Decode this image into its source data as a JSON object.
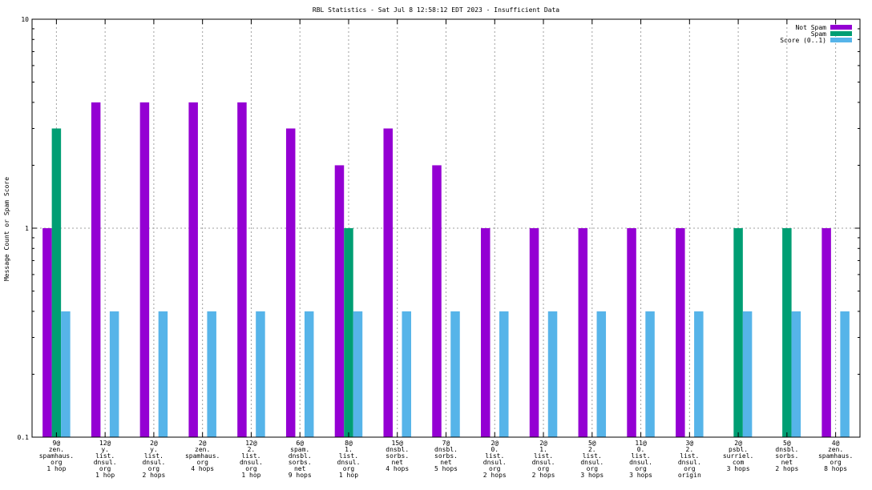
{
  "chart_data": {
    "type": "bar",
    "title": "RBL Statistics - Sat Jul  8 12:58:12 EDT 2023 - Insufficient Data",
    "ylabel": "Message Count or Spam Score",
    "xlabel": "",
    "yscale": "log",
    "ylim": [
      0.1,
      10
    ],
    "y_ticks": [
      "0.1",
      "1",
      "10"
    ],
    "legend_position": "top-right",
    "grid": "dotted",
    "categories": [
      [
        "9@",
        "zen.",
        "spamhaus.",
        "org",
        "1 hop"
      ],
      [
        "12@",
        "y.",
        "list.",
        "dnsul.",
        "org",
        "1 hop"
      ],
      [
        "2@",
        "y.",
        "list.",
        "dnsul.",
        "org",
        "2 hops"
      ],
      [
        "2@",
        "zen.",
        "spamhaus.",
        "org",
        "4 hops"
      ],
      [
        "12@",
        "2.",
        "list.",
        "dnsul.",
        "org",
        "1 hop"
      ],
      [
        "6@",
        "spam.",
        "dnsbl.",
        "sorbs.",
        "net",
        "9 hops"
      ],
      [
        "8@",
        "1.",
        "list.",
        "dnsul.",
        "org",
        "1 hop"
      ],
      [
        "15@",
        "dnsbl.",
        "sorbs.",
        "net",
        "4 hops"
      ],
      [
        "7@",
        "dnsbl.",
        "sorbs.",
        "net",
        "5 hops"
      ],
      [
        "2@",
        "0.",
        "list.",
        "dnsul.",
        "org",
        "2 hops"
      ],
      [
        "2@",
        "1.",
        "list.",
        "dnsul.",
        "org",
        "2 hops"
      ],
      [
        "5@",
        "2.",
        "list.",
        "dnsul.",
        "org",
        "3 hops"
      ],
      [
        "11@",
        "0.",
        "list.",
        "dnsul.",
        "org",
        "3 hops"
      ],
      [
        "3@",
        "2.",
        "list.",
        "dnsul.",
        "org",
        "origin"
      ],
      [
        "2@",
        "psbl.",
        "surriel.",
        "com",
        "3 hops"
      ],
      [
        "5@",
        "dnsbl.",
        "sorbs.",
        "net",
        "2 hops"
      ],
      [
        "4@",
        "zen.",
        "spamhaus.",
        "org",
        "8 hops"
      ]
    ],
    "series": [
      {
        "name": "Not Spam",
        "color": "#9400d3",
        "values": [
          1,
          4,
          4,
          4,
          4,
          3,
          2,
          3,
          2,
          1,
          1,
          1,
          1,
          1,
          null,
          null,
          1
        ]
      },
      {
        "name": "Spam",
        "color": "#009e73",
        "values": [
          3,
          null,
          null,
          null,
          null,
          null,
          1,
          null,
          null,
          null,
          null,
          null,
          null,
          null,
          1,
          1,
          null
        ]
      },
      {
        "name": "Score (0..1)",
        "color": "#56b4e9",
        "values": [
          0.4,
          0.4,
          0.4,
          0.4,
          0.4,
          0.4,
          0.4,
          0.4,
          0.4,
          0.4,
          0.4,
          0.4,
          0.4,
          0.4,
          0.4,
          0.4,
          0.4
        ]
      }
    ]
  }
}
